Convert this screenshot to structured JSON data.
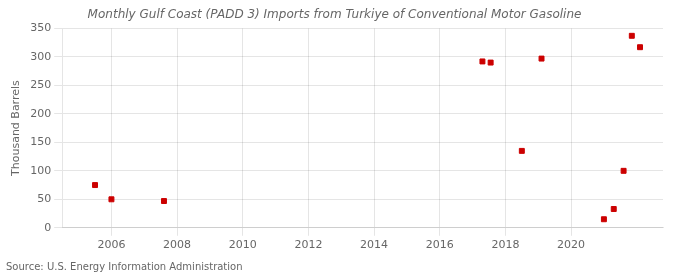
{
  "chart_data": {
    "type": "scatter",
    "title": "Monthly Gulf Coast (PADD 3) Imports from Turkiye of Conventional Motor Gasoline",
    "ylabel": "Thousand Barrels",
    "annotations": [
      "Source: U.S. Energy Information Administration"
    ],
    "x": [
      2005.5,
      2006.0,
      2007.6,
      2017.3,
      2017.55,
      2018.5,
      2019.1,
      2021.0,
      2021.3,
      2021.6,
      2021.85,
      2022.1
    ],
    "values": [
      75,
      50,
      47,
      292,
      290,
      135,
      297,
      15,
      33,
      100,
      337,
      317
    ],
    "color": "#cc0000",
    "marker": "square",
    "xlim": [
      2004.5,
      2022.8
    ],
    "ylim": [
      0,
      350
    ],
    "xticks": [
      2006,
      2008,
      2010,
      2012,
      2014,
      2016,
      2018,
      2020
    ],
    "yticks": [
      0,
      50,
      100,
      150,
      200,
      250,
      300,
      350
    ],
    "grid": true
  }
}
